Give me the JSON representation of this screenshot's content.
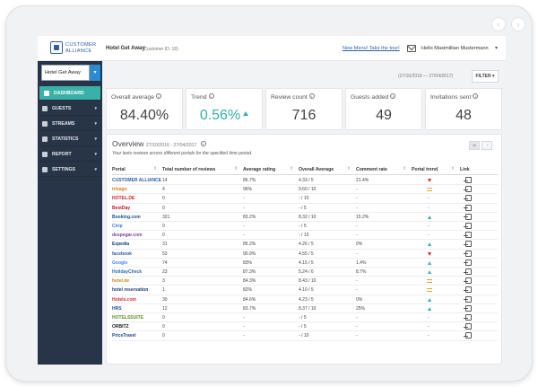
{
  "device": {
    "nav_back": "‹",
    "nav_forward": "›"
  },
  "header": {
    "logo_line1": "CUSTOMER",
    "logo_line2": "ALLIANCE",
    "hotel_name": "Hotel Get Away",
    "customer_id": "(Customer ID: 18)",
    "tour_link": "New Menu! Take the tour!",
    "user_name": "Hello Maximillian Mustermann",
    "user_caret": "▾"
  },
  "sidebar": {
    "hotel_select": "Hotel Get Away",
    "hotel_select_caret": "▾",
    "items": [
      {
        "label": "DASHBOARD",
        "active": true
      },
      {
        "label": "GUESTS",
        "caret": "▾"
      },
      {
        "label": "STREAMS",
        "caret": "▾"
      },
      {
        "label": "STATISTICS",
        "caret": "▾"
      },
      {
        "label": "REPORT",
        "caret": "▾"
      },
      {
        "label": "SETTINGS",
        "caret": "▾"
      }
    ]
  },
  "filter": {
    "date_range": "(27/10/2016 — 27/04/2017)",
    "button": "FILTER ▾"
  },
  "kpis": [
    {
      "label": "Overall average",
      "value": "84.40%"
    },
    {
      "label": "Trend",
      "value": "0.56%",
      "teal": true
    },
    {
      "label": "Review count",
      "value": "716"
    },
    {
      "label": "Guests added",
      "value": "49"
    },
    {
      "label": "Invitations sent",
      "value": "48"
    }
  ],
  "overview": {
    "title": "Overview",
    "range": "27/10/2016 - 27/04/2017",
    "subtitle": "Your lasts reviews across different portals for the specified time period.",
    "view_buttons": [
      "▤",
      "◔"
    ],
    "columns": [
      "Portal",
      "Total number of reviews",
      "Average rating",
      "Overall Average",
      "Comment rate",
      "Portal trend",
      "Link"
    ],
    "rows": [
      {
        "portal": "CUSTOMER ALLIANCE",
        "color": "#2f5ea8",
        "reviews": "14",
        "rating": "86.7%",
        "overall": "4.33 / 5",
        "comment": "21.4%",
        "trend": "down"
      },
      {
        "portal": "trivago",
        "color": "#e07b22",
        "reviews": "4",
        "rating": "96%",
        "overall": "9.60 / 10",
        "comment": "-",
        "trend": "eq"
      },
      {
        "portal": "HOTEL.DE",
        "color": "#d1212a",
        "reviews": "0",
        "rating": "-",
        "overall": "- / 10",
        "comment": "-",
        "trend": "none"
      },
      {
        "portal": "BestDay",
        "color": "#c0142a",
        "reviews": "0",
        "rating": "-",
        "overall": "- / 5",
        "comment": "-",
        "trend": "none"
      },
      {
        "portal": "Booking.com",
        "color": "#1b4d98",
        "reviews": "321",
        "rating": "83.2%",
        "overall": "8.32 / 10",
        "comment": "15.2%",
        "trend": "up"
      },
      {
        "portal": "Ctrip",
        "color": "#3b7fd1",
        "reviews": "0",
        "rating": "-",
        "overall": "- / 5",
        "comment": "-",
        "trend": "none"
      },
      {
        "portal": "despegar.com",
        "color": "#7b3fa3",
        "reviews": "0",
        "rating": "-",
        "overall": "- / 10",
        "comment": "-",
        "trend": "none"
      },
      {
        "portal": "Expedia",
        "color": "#1d3f7a",
        "reviews": "31",
        "rating": "85.2%",
        "overall": "4.26 / 5",
        "comment": "0%",
        "trend": "up"
      },
      {
        "portal": "facebook",
        "color": "#3b5998",
        "reviews": "53",
        "rating": "90.9%",
        "overall": "4.55 / 5",
        "comment": "-",
        "trend": "down"
      },
      {
        "portal": "Google",
        "color": "#4285f4",
        "reviews": "74",
        "rating": "83%",
        "overall": "4.15 / 5",
        "comment": "1.4%",
        "trend": "up"
      },
      {
        "portal": "HolidayCheck",
        "color": "#2c6cb0",
        "reviews": "23",
        "rating": "87.3%",
        "overall": "5.24 / 6",
        "comment": "8.7%",
        "trend": "up"
      },
      {
        "portal": "hotel.de",
        "color": "#e0821b",
        "reviews": "3",
        "rating": "84.3%",
        "overall": "8.43 / 10",
        "comment": "-",
        "trend": "eq"
      },
      {
        "portal": "hotel reservation",
        "color": "#1d3f7a",
        "reviews": "1",
        "rating": "82%",
        "overall": "4.10 / 5",
        "comment": "-",
        "trend": "eq"
      },
      {
        "portal": "Hotels.com",
        "color": "#d32f2f",
        "reviews": "30",
        "rating": "84.6%",
        "overall": "4.23 / 5",
        "comment": "0%",
        "trend": "up"
      },
      {
        "portal": "HRS",
        "color": "#1b4d98",
        "reviews": "12",
        "rating": "83.7%",
        "overall": "8.37 / 10",
        "comment": "25%",
        "trend": "up"
      },
      {
        "portal": "HOTELSSUITE",
        "color": "#5a8f2b",
        "reviews": "0",
        "rating": "-",
        "overall": "- / 5",
        "comment": "-",
        "trend": "none"
      },
      {
        "portal": "ORBITZ",
        "color": "#1a1a1a",
        "reviews": "0",
        "rating": "-",
        "overall": "- / 5",
        "comment": "-",
        "trend": "none"
      },
      {
        "portal": "PriceTravel",
        "color": "#1f3f8f",
        "reviews": "0",
        "rating": "-",
        "overall": "- / 10",
        "comment": "-",
        "trend": "none"
      }
    ]
  }
}
